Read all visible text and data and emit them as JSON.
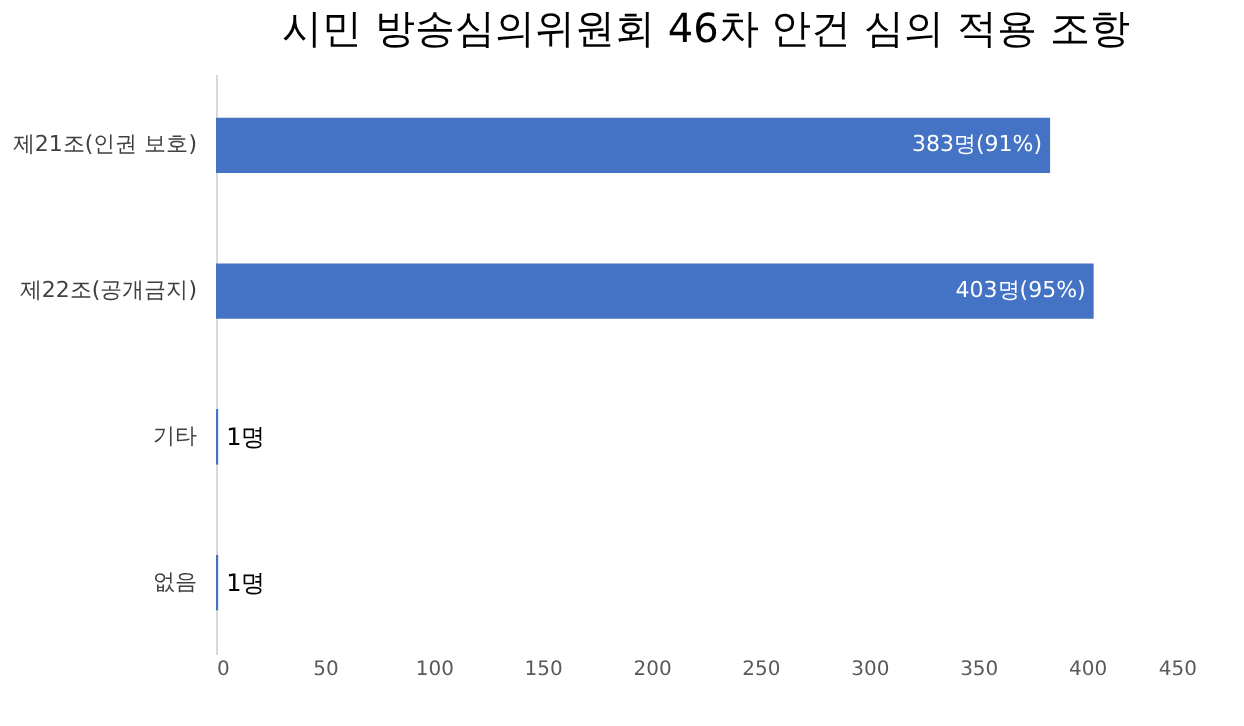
{
  "chart_data": {
    "type": "bar",
    "orientation": "horizontal",
    "title": "시민 방송심의위원회 46차 안건 심의 적용 조항",
    "categories": [
      "제21조(인권 보호)",
      "제22조(공개금지)",
      "기타",
      "없음"
    ],
    "values": [
      383,
      403,
      1,
      1
    ],
    "color": "#4472c4",
    "value_labels": [
      "383명(91%)",
      "403명(95%)",
      "1명",
      "1명"
    ],
    "xlim": [
      0,
      450
    ],
    "xticks": [
      0,
      50,
      100,
      150,
      200,
      250,
      300,
      350,
      400,
      450
    ],
    "grid": false
  }
}
